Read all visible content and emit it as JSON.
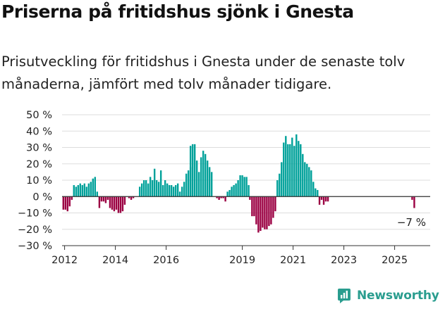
{
  "header": {
    "title": "Priserna på fritidshus sjönk i Gnesta",
    "subtitle": "Prisutveckling för fritidshus i Gnesta under de senaste tolv månaderna, jämfört med tolv månader tidigare."
  },
  "brand": {
    "name": "Newsworthy",
    "icon": "newsworthy-logo-icon"
  },
  "colors": {
    "positive": "#00a19a",
    "negative": "#9b0042",
    "grid": "#dddddd",
    "text": "#222222"
  },
  "chart_data": {
    "type": "bar",
    "title": "",
    "xlabel": "",
    "ylabel": "",
    "ylim": [
      -30,
      50
    ],
    "y_ticks": [
      "50 %",
      "40 %",
      "30 %",
      "20 %",
      "10 %",
      "0 %",
      "−10 %",
      "−20 %",
      "−30 %"
    ],
    "y_tick_values": [
      50,
      40,
      30,
      20,
      10,
      0,
      -10,
      -20,
      -30
    ],
    "x_ticks": [
      "2012",
      "2014",
      "2016",
      "2019",
      "2021",
      "2023",
      "2025"
    ],
    "x_tick_years": [
      2012,
      2014,
      2016,
      2019,
      2021,
      2023,
      2025
    ],
    "x_start": 2011.9,
    "x_end": 2026.4,
    "grid": true,
    "legend": "none",
    "end_label": "−7 %",
    "series": [
      {
        "start": 2011.95,
        "values": [
          -8,
          -8,
          -9,
          -6,
          -2,
          7,
          6,
          7,
          8,
          7,
          8,
          6,
          8,
          9,
          11,
          12,
          3
        ]
      },
      {
        "start": 2013.37,
        "values": [
          -7,
          -3,
          -3,
          -4,
          -2,
          -7,
          -8,
          -9,
          -8,
          -10,
          -10,
          -9,
          -5
        ]
      },
      {
        "start": 2014.54,
        "values": [
          -1,
          -2,
          -1
        ]
      },
      {
        "start": 2014.96,
        "values": [
          6,
          8,
          10,
          10,
          8,
          12,
          10,
          17,
          10,
          9,
          16,
          7,
          10,
          8,
          7,
          7,
          6,
          7,
          8,
          3,
          6,
          9,
          14,
          16,
          18
        ]
      },
      {
        "start": 2016.96,
        "values": [
          31,
          32,
          32,
          22,
          15,
          24,
          28,
          26,
          22,
          18,
          15
        ]
      },
      {
        "start": 2018.0,
        "values": [
          -1,
          -2,
          -1,
          -1,
          -3,
          3,
          4,
          6,
          7,
          8,
          10,
          13,
          13,
          12,
          12,
          7
        ]
      },
      {
        "start": 2019.3,
        "values": [
          -2,
          -12,
          -12,
          -17,
          -22,
          -21,
          -19,
          -20,
          -20,
          -18,
          -17,
          -13,
          -9
        ]
      },
      {
        "start": 2020.38,
        "values": [
          10,
          14,
          21,
          33,
          37,
          32,
          32,
          36,
          31,
          38,
          34,
          32,
          26,
          21,
          20,
          18,
          16,
          9,
          5,
          4
        ]
      },
      {
        "start": 2022.04,
        "values": [
          -5,
          -2,
          -5,
          -3,
          -3
        ]
      },
      {
        "start": 2025.69,
        "values": [
          -2,
          -7
        ]
      }
    ]
  }
}
